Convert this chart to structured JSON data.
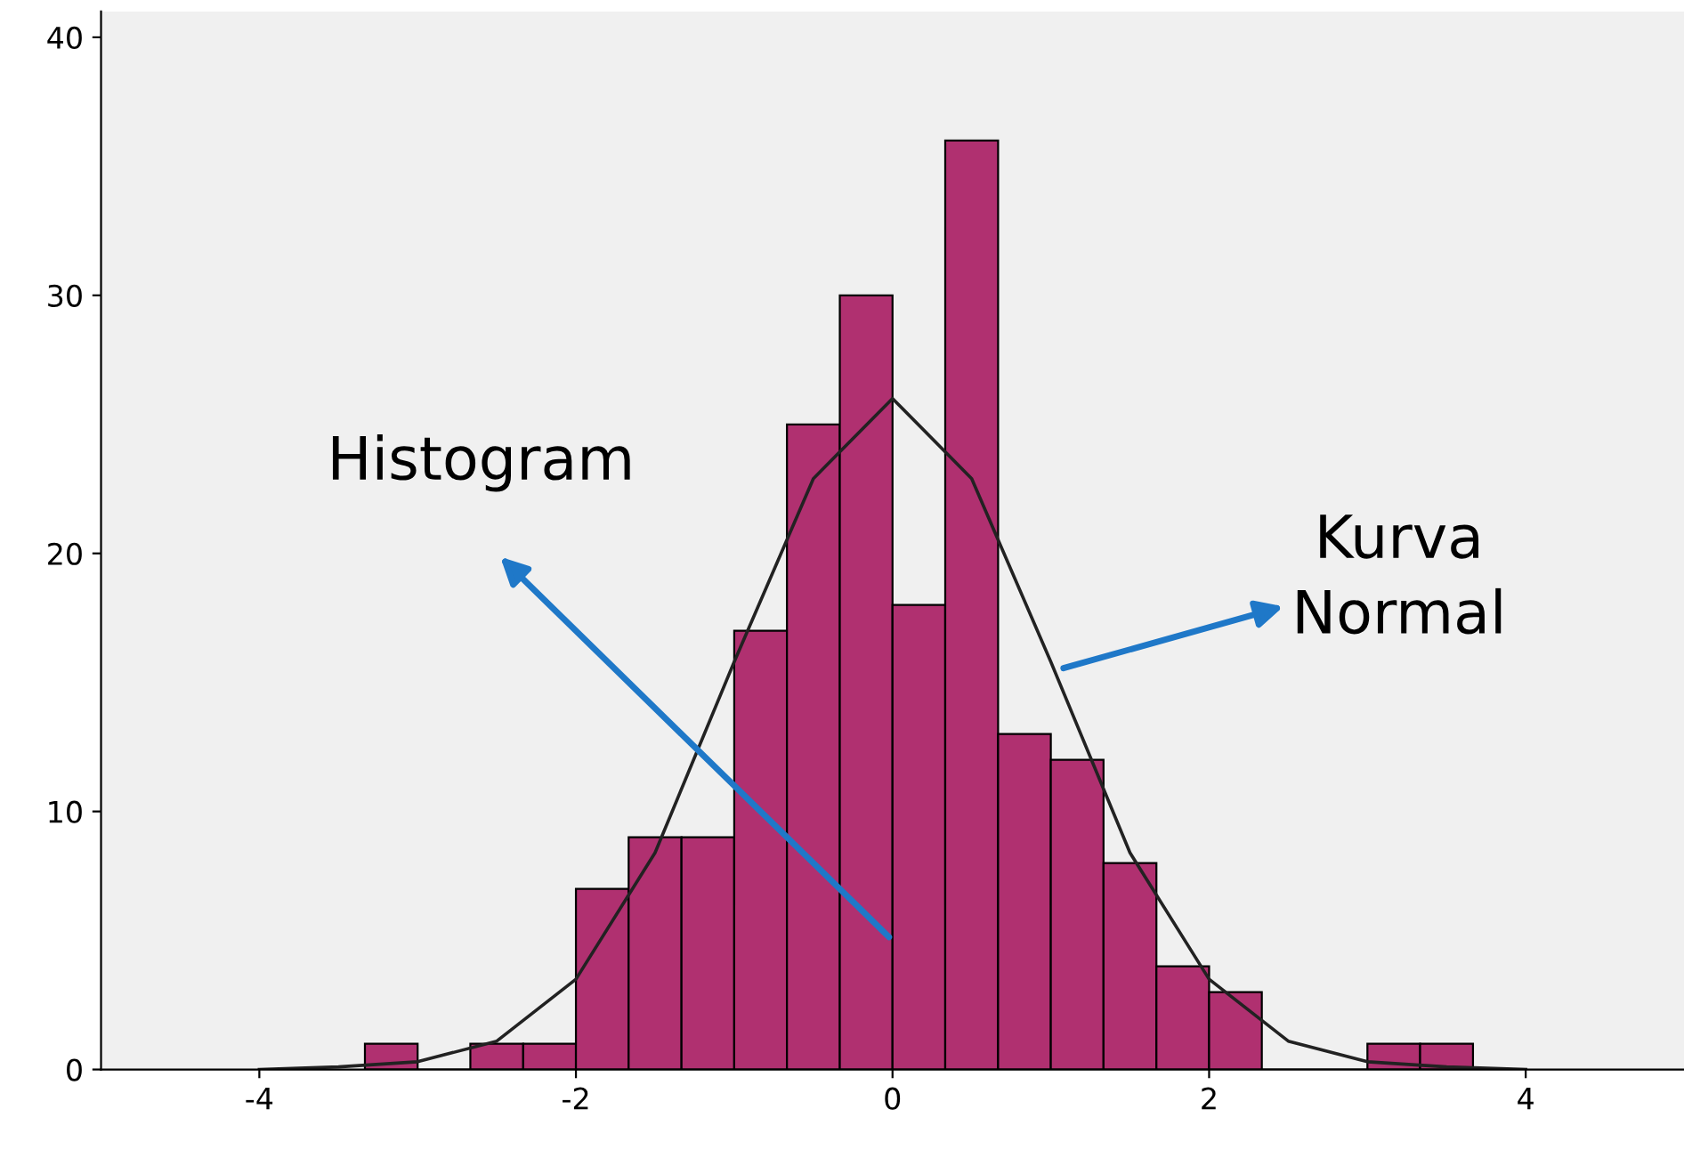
{
  "chart_data": {
    "type": "histogram",
    "bins": [
      -3.333,
      -3.0,
      -2.667,
      -2.333,
      -2.0,
      -1.667,
      -1.333,
      -1.0,
      -0.667,
      -0.333,
      0.0,
      0.333,
      0.667,
      1.0,
      1.333,
      1.667,
      2.0,
      2.333,
      2.667,
      3.0,
      3.333,
      3.667
    ],
    "values": [
      1,
      0,
      1,
      1,
      7,
      9,
      9,
      17,
      25,
      30,
      18,
      36,
      13,
      12,
      8,
      4,
      3,
      0,
      0,
      1,
      1
    ],
    "color": "#b03070",
    "series": [
      {
        "type": "line",
        "color": "#222222",
        "x": [
          -4,
          -3.5,
          -3,
          -2.5,
          -2,
          -1.5,
          -1,
          -0.5,
          0,
          0.5,
          1,
          1.5,
          2,
          2.5,
          3,
          3.5,
          4
        ],
        "values": [
          0,
          0.1,
          0.3,
          1.1,
          3.5,
          8.4,
          15.8,
          22.9,
          26,
          22.9,
          15.8,
          8.4,
          3.5,
          1.1,
          0.3,
          0.1,
          0
        ]
      }
    ],
    "annotations": [
      {
        "text": "Histogram",
        "x": 0,
        "y": 5
      },
      {
        "text": "Kurva\nNormal",
        "x": 1.05,
        "y": 15.5
      }
    ],
    "xlim": [
      -5,
      5
    ],
    "ylim": [
      0,
      41
    ],
    "xticks": [
      -4,
      -2,
      0,
      2,
      4
    ],
    "yticks": [
      0,
      10,
      20,
      30,
      40
    ],
    "grid": false
  }
}
